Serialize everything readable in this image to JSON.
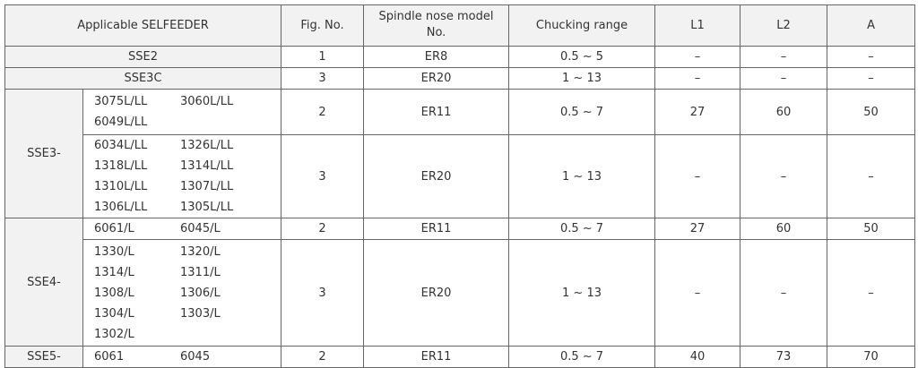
{
  "header": [
    "Applicable SELFEEDER",
    "Fig. No.",
    "Spindle nose model No.",
    "Chucking range",
    "L1",
    "L2",
    "A"
  ],
  "rows": [
    {
      "group": "SSE2",
      "subrows": [
        {
          "fig": "1",
          "model": "ER8",
          "range": "0.5 ~ 5",
          "l1": "–",
          "l2": "–",
          "a": "–"
        }
      ]
    },
    {
      "group": "SSE3C",
      "subrows": [
        {
          "fig": "3",
          "model": "ER20",
          "range": "1 ~ 13",
          "l1": "–",
          "l2": "–",
          "a": "–"
        }
      ]
    },
    {
      "group": "SSE3-",
      "subrows": [
        {
          "models": [
            "3075L/LL",
            "3060L/LL",
            "6049L/LL"
          ],
          "fig": "2",
          "model": "ER11",
          "range": "0.5 ~ 7",
          "l1": "27",
          "l2": "60",
          "a": "50"
        },
        {
          "models": [
            "6034L/LL",
            "1326L/LL",
            "1318L/LL",
            "1314L/LL",
            "1310L/LL",
            "1307L/LL",
            "1306L/LL",
            "1305L/LL"
          ],
          "fig": "3",
          "model": "ER20",
          "range": "1 ~ 13",
          "l1": "–",
          "l2": "–",
          "a": "–"
        }
      ]
    },
    {
      "group": "SSE4-",
      "subrows": [
        {
          "models": [
            "6061/L",
            "6045/L"
          ],
          "fig": "2",
          "model": "ER11",
          "range": "0.5 ~ 7",
          "l1": "27",
          "l2": "60",
          "a": "50"
        },
        {
          "models": [
            "1330/L",
            "1320/L",
            "1314/L",
            "1311/L",
            "1308/L",
            "1306/L",
            "1304/L",
            "1303/L",
            "1302/L"
          ],
          "fig": "3",
          "model": "ER20",
          "range": "1 ~ 13",
          "l1": "–",
          "l2": "–",
          "a": "–"
        }
      ]
    },
    {
      "group": "SSE5-",
      "subrows": [
        {
          "models": [
            "6061",
            "6045"
          ],
          "fig": "2",
          "model": "ER11",
          "range": "0.5 ~ 7",
          "l1": "40",
          "l2": "73",
          "a": "70"
        }
      ]
    }
  ]
}
